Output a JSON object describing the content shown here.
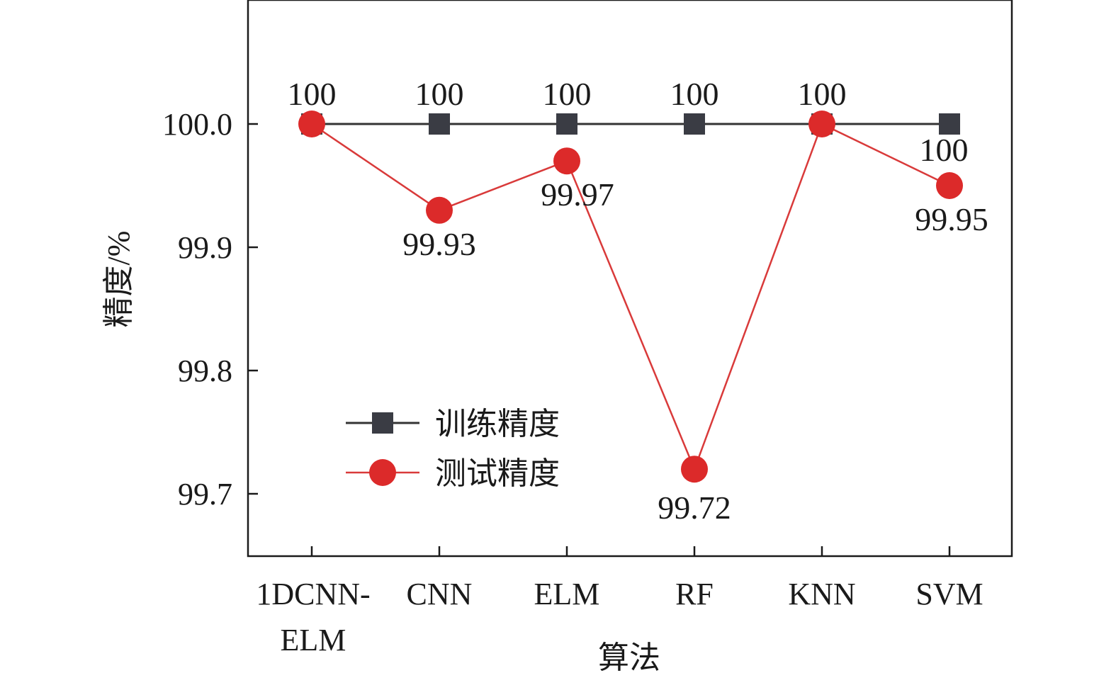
{
  "chart_data": {
    "type": "line",
    "title": "",
    "xlabel": "算法",
    "ylabel": "精度/%",
    "categories": [
      [
        "1DCNN-",
        "ELM"
      ],
      [
        "CNN"
      ],
      [
        "ELM"
      ],
      [
        "RF"
      ],
      [
        "KNN"
      ],
      [
        "SVM"
      ]
    ],
    "ylim": [
      99.65,
      100.1
    ],
    "yticks": [
      99.7,
      99.8,
      99.9,
      100.0
    ],
    "ytick_labels": [
      "99.7",
      "99.8",
      "99.9",
      "100.0"
    ],
    "grid": false,
    "legend": "lower-left",
    "series": [
      {
        "name": "训练精度",
        "marker": "square",
        "color": "#3a3c44",
        "line_color": "#333333",
        "values": [
          100,
          100,
          100,
          100,
          100,
          100
        ],
        "labels": [
          "100",
          "100",
          "100",
          "100",
          "100",
          "100"
        ]
      },
      {
        "name": "测试精度",
        "marker": "circle",
        "color": "#dc2a2a",
        "line_color": "#d93a3a",
        "values": [
          100,
          99.93,
          99.97,
          99.72,
          100,
          99.95
        ],
        "labels": [
          "",
          "99.93",
          "99.97",
          "99.72",
          "",
          "99.95"
        ]
      }
    ]
  }
}
